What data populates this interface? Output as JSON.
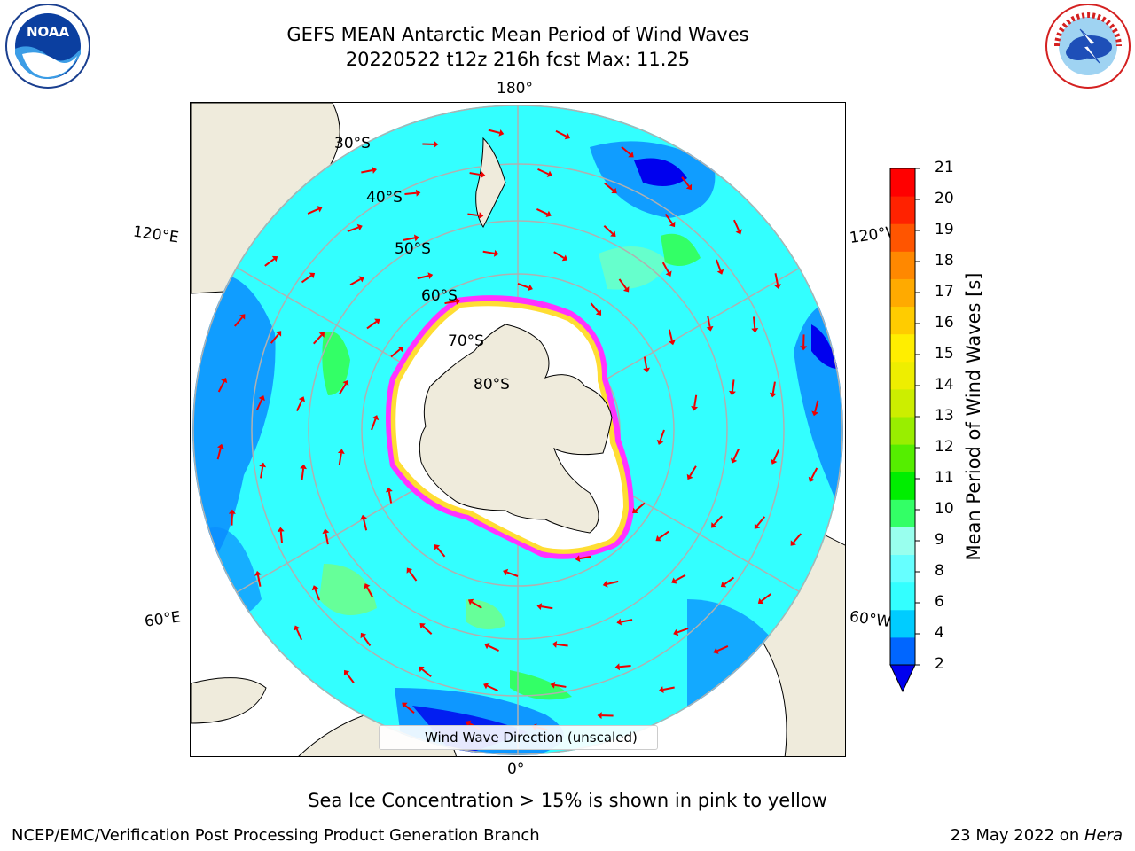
{
  "title": {
    "line1": "GEFS MEAN Antarctic Mean Period of Wind Waves",
    "line2": "20220522 t12z 216h fcst   Max: 11.25"
  },
  "map": {
    "projection": "south-polar-stereographic",
    "meridian_labels": {
      "top": "180°",
      "bottom": "0°",
      "upper_left": "120°E",
      "lower_left": "60°E",
      "upper_right": "120°W",
      "lower_right": "60°W"
    },
    "latitude_labels": [
      "30°S",
      "40°S",
      "50°S",
      "60°S",
      "70°S",
      "80°S"
    ],
    "ice_edge_colors": [
      "#ff33ff",
      "#ffff33",
      "#ffaa00"
    ],
    "land_color": "#efebdc",
    "ocean_default_color": "#33ffff"
  },
  "legend": {
    "label": "Wind Wave Direction (unscaled)"
  },
  "colorbar": {
    "label": "Mean Period of Wind Waves [s]",
    "ticks": [
      "2",
      "4",
      "6",
      "8",
      "9",
      "10",
      "11",
      "12",
      "13",
      "14",
      "15",
      "16",
      "17",
      "18",
      "19",
      "20",
      "21"
    ],
    "colors": [
      "#0066ff",
      "#00ccff",
      "#33ffff",
      "#66ffff",
      "#99ffee",
      "#33ff66",
      "#00ee00",
      "#55ee00",
      "#99ee00",
      "#ccee00",
      "#eeee00",
      "#ffee00",
      "#ffcc00",
      "#ffaa00",
      "#ff8800",
      "#ff5500",
      "#ff2200",
      "#ff0000"
    ],
    "extend_color": "#0000ee"
  },
  "annotation": "Sea Ice Concentration > 15% is shown in pink to yellow",
  "footer": {
    "left": "NCEP/EMC/Verification Post Processing Product Generation Branch",
    "right_prefix": "23 May 2022 on ",
    "right_machine": "Hera"
  },
  "logos": {
    "left_text": "NOAA",
    "right_text": "NATIONAL WEATHER SERVICE"
  }
}
